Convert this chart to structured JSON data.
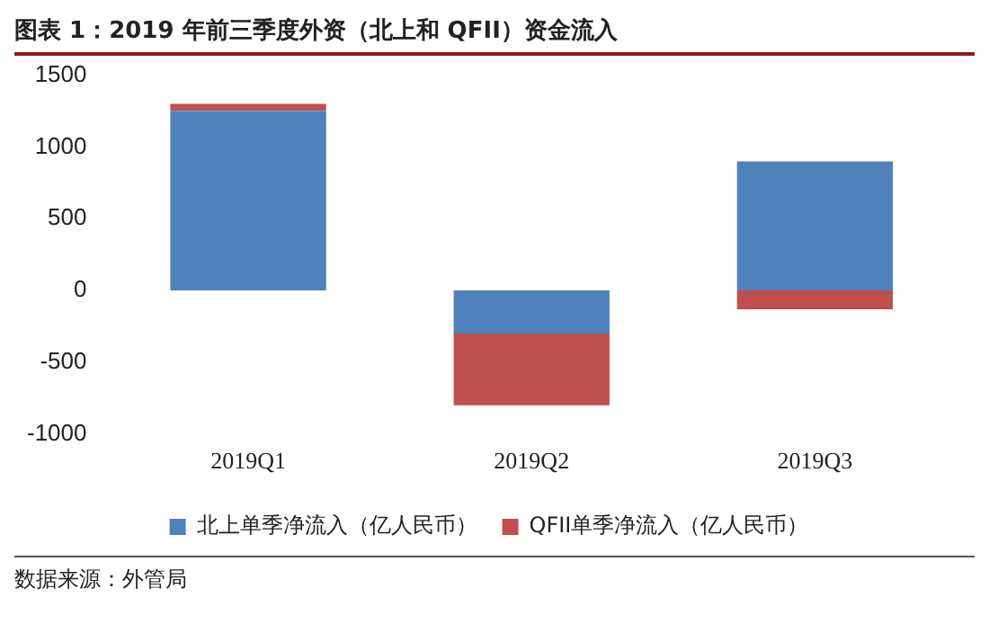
{
  "chart_data": {
    "type": "bar",
    "title": "图表 1：2019 年前三季度外资（北上和 QFII）资金流入",
    "categories": [
      "2019Q1",
      "2019Q2",
      "2019Q3"
    ],
    "stacked": true,
    "series": [
      {
        "name": "北上单季净流入（亿人民币）",
        "color": "#4f81bd",
        "values": [
          1250,
          -300,
          900
        ]
      },
      {
        "name": "QFII单季净流入（亿人民币）",
        "color": "#c0504d",
        "values": [
          50,
          -500,
          -130
        ]
      }
    ],
    "ylim": [
      -1000,
      1500
    ],
    "yticks": [
      -1000,
      -500,
      0,
      500,
      1000,
      1500
    ],
    "grid": false,
    "legend": "bottom",
    "annotations": [
      "数据来源：外管局"
    ]
  }
}
